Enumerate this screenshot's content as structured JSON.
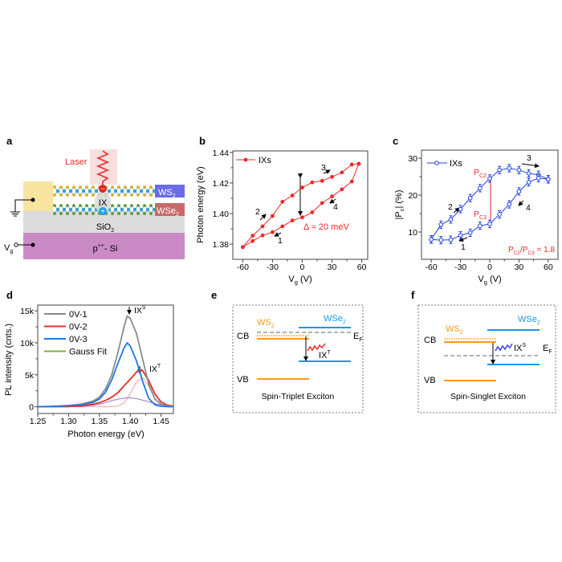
{
  "panel_labels": {
    "a": "a",
    "b": "b",
    "c": "c",
    "d": "d",
    "e": "e",
    "f": "f"
  },
  "colors": {
    "red": "#ee2a2a",
    "blue": "#1f3fe8",
    "gray": "#8a8a8a",
    "pl_red": "#e8312a",
    "pl_blue": "#1e78e6",
    "green": "#7fb040",
    "pink": "#f4a0a0",
    "purple": "#a070d0",
    "orange": "#ff9a1a",
    "wse2_blue": "#1a96f0",
    "electrode": "#f7e4a0",
    "sio2": "#dcdcdc",
    "si": "#c98ac6"
  },
  "device": {
    "laser": "Laser",
    "ws2": {
      "main": "WS",
      "sub": "2"
    },
    "wse2": {
      "main": "WSe",
      "sub": "2"
    },
    "ix": "IX",
    "minus": "−",
    "plus": "+",
    "sio2": {
      "main": "SiO",
      "sub": "2"
    },
    "si": {
      "main": "p",
      "sup": "++",
      "rest": "- Si"
    },
    "vg": {
      "main": "V",
      "sub": "g"
    }
  },
  "chart_data": [
    {
      "panel": "b",
      "type": "line",
      "xlabel": {
        "main": "V",
        "sub": "g",
        "unit": " (V)"
      },
      "ylabel": "Photon energy (eV)",
      "xlim": [
        -70,
        66
      ],
      "ylim": [
        1.37,
        1.441
      ],
      "xticks": [
        -60,
        -30,
        0,
        30,
        60
      ],
      "yticks": [
        1.38,
        1.4,
        1.42,
        1.44
      ],
      "legend": {
        "label": "IXs",
        "position": "top-left"
      },
      "series": [
        {
          "name": "IXs",
          "color": "#ee2a2a",
          "marker": "filled-circle",
          "x": [
            -60,
            -50,
            -40,
            -30,
            -20,
            -10,
            0,
            10,
            20,
            30,
            40,
            50,
            57
          ],
          "y_sweep_up": [
            1.378,
            1.3855,
            1.3916,
            1.3984,
            1.4077,
            1.4118,
            1.417,
            1.4204,
            1.4214,
            1.424,
            1.4269,
            1.4321,
            1.4326
          ],
          "y_sweep_down": [
            1.378,
            1.382,
            1.3857,
            1.3878,
            1.3916,
            1.3954,
            1.3975,
            1.4008,
            1.4069,
            1.4112,
            1.4158,
            1.421,
            1.4326
          ]
        }
      ],
      "annotations": {
        "delta": "Δ ≈ 20 meV",
        "n1": "1",
        "n2": "2",
        "n3": "3",
        "n4": "4"
      }
    },
    {
      "panel": "c",
      "type": "line",
      "xlabel": {
        "main": "V",
        "sub": "g",
        "unit": " (V)"
      },
      "ylabel": {
        "pre": "|P",
        "sub": "c",
        "post": "| (%)"
      },
      "xlim": [
        -70,
        70
      ],
      "ylim": [
        2.6,
        32.2
      ],
      "xticks": [
        -60,
        -30,
        0,
        30,
        60
      ],
      "yticks": [
        10,
        20,
        30
      ],
      "legend": {
        "label": "IXs",
        "position": "top-left"
      },
      "series": [
        {
          "name": "IXs",
          "color": "#1f3fe8",
          "marker": "open-circle",
          "error": 1,
          "x": [
            -60,
            -50,
            -40,
            -30,
            -20,
            -10,
            0,
            10,
            20,
            30,
            40,
            50,
            60
          ],
          "y_sweep_up": [
            8.0,
            12.0,
            13.4,
            16.2,
            19.2,
            21.9,
            24.5,
            26.8,
            27.3,
            26.8,
            25.9,
            25.5,
            24.3
          ],
          "y_sweep_down": [
            8.0,
            7.8,
            7.9,
            9.1,
            9.8,
            11.7,
            12.2,
            14.8,
            17.5,
            21.0,
            23.5,
            24.6,
            24.3
          ]
        }
      ],
      "annotations": {
        "pc2": {
          "main": "P",
          "sub": "C2"
        },
        "pc3": {
          "main": "P",
          "sub": "C3"
        },
        "ratio": {
          "p1": "P",
          "s1": "C2",
          "mid": "/P",
          "s2": "C3",
          "end": " = 1.8"
        },
        "n1": "1",
        "n2": "2",
        "n3": "3",
        "n4": "4"
      }
    },
    {
      "panel": "d",
      "type": "line",
      "xlabel": "Photon energy (eV)",
      "ylabel": "PL intensity (cnts.)",
      "xlim": [
        1.25,
        1.47
      ],
      "ylim": [
        -1050,
        15900
      ],
      "xticks": [
        1.25,
        1.3,
        1.35,
        1.4,
        1.45
      ],
      "xticklabels": [
        "1.25",
        "1.30",
        "1.35",
        "1.40",
        "1.45"
      ],
      "yticks": [
        0,
        5000,
        10000,
        15000
      ],
      "yticklabels": [
        "0",
        "5k",
        "10k",
        "15k"
      ],
      "legend_position": "top-left",
      "series": [
        {
          "name": "0V-1",
          "color": "#8a8a8a",
          "x": [
            1.25,
            1.28,
            1.3,
            1.32,
            1.34,
            1.35,
            1.36,
            1.37,
            1.38,
            1.39,
            1.395,
            1.4,
            1.41,
            1.42,
            1.43,
            1.44,
            1.45,
            1.46,
            1.47
          ],
          "y": [
            0,
            100,
            200,
            400,
            900,
            1500,
            2800,
            5000,
            8500,
            12500,
            14200,
            13800,
            11500,
            7500,
            3500,
            1200,
            400,
            150,
            50
          ]
        },
        {
          "name": "0V-2",
          "color": "#e8312a",
          "x": [
            1.25,
            1.3,
            1.32,
            1.34,
            1.35,
            1.36,
            1.37,
            1.38,
            1.39,
            1.4,
            1.41,
            1.415,
            1.42,
            1.43,
            1.44,
            1.45,
            1.46,
            1.47
          ],
          "y": [
            0,
            30,
            120,
            400,
            650,
            1000,
            1500,
            2200,
            3300,
            4300,
            5400,
            5800,
            5650,
            4100,
            2000,
            750,
            260,
            90
          ]
        },
        {
          "name": "0V-3",
          "color": "#1e78e6",
          "x": [
            1.25,
            1.28,
            1.3,
            1.32,
            1.34,
            1.35,
            1.36,
            1.37,
            1.38,
            1.39,
            1.395,
            1.4,
            1.41,
            1.42,
            1.43,
            1.44,
            1.45,
            1.46,
            1.47
          ],
          "y": [
            0,
            80,
            150,
            300,
            700,
            1200,
            2300,
            4200,
            6800,
            9200,
            10000,
            9500,
            7200,
            4000,
            1300,
            300,
            80,
            20,
            0
          ]
        },
        {
          "name": "Gauss Fit",
          "color": "#7fb040",
          "x": [
            1.25,
            1.3,
            1.32,
            1.34,
            1.35,
            1.36,
            1.37,
            1.38,
            1.39,
            1.4,
            1.41,
            1.415,
            1.42,
            1.43,
            1.44,
            1.45,
            1.46,
            1.47
          ],
          "y": [
            0,
            20,
            100,
            380,
            620,
            980,
            1450,
            2150,
            3250,
            4250,
            5350,
            5700,
            5600,
            4050,
            1950,
            720,
            240,
            80
          ]
        },
        {
          "color": "#f4a0a0",
          "x": [
            1.25,
            1.36,
            1.37,
            1.38,
            1.39,
            1.4,
            1.41,
            1.42,
            1.43,
            1.44,
            1.45,
            1.46,
            1.47
          ],
          "y": [
            0,
            0,
            13,
            116,
            620,
            2015,
            3900,
            4550,
            3185,
            1340,
            340,
            51,
            0
          ]
        },
        {
          "color": "#a070d0",
          "x": [
            1.25,
            1.3,
            1.32,
            1.34,
            1.35,
            1.36,
            1.37,
            1.38,
            1.39,
            1.4,
            1.41,
            1.42,
            1.43,
            1.44,
            1.45,
            1.46,
            1.47
          ],
          "y": [
            0,
            8,
            52,
            231,
            410,
            654,
            940,
            1190,
            1360,
            1390,
            1275,
            1040,
            764,
            500,
            294,
            155,
            72
          ]
        }
      ],
      "annotations": {
        "ixs": {
          "main": "IX",
          "sup": "S"
        },
        "ixt": {
          "main": "IX",
          "sup": "T"
        }
      }
    }
  ],
  "band_e": {
    "ws2": {
      "main": "WS",
      "sub": "2"
    },
    "wse2": {
      "main": "WSe",
      "sub": "2"
    },
    "cb": "CB",
    "vb": "VB",
    "ef": {
      "main": "E",
      "sub": "F"
    },
    "ix": {
      "main": "IX",
      "sup": "T"
    },
    "caption": "Spin-Triplet Exciton"
  },
  "band_f": {
    "ws2": {
      "main": "WS",
      "sub": "2"
    },
    "wse2": {
      "main": "WSe",
      "sub": "2"
    },
    "cb": "CB",
    "vb": "VB",
    "ef": {
      "main": "E",
      "sub": "F"
    },
    "ix": {
      "main": "IX",
      "sup": "S"
    },
    "caption": "Spin-Singlet Exciton"
  }
}
